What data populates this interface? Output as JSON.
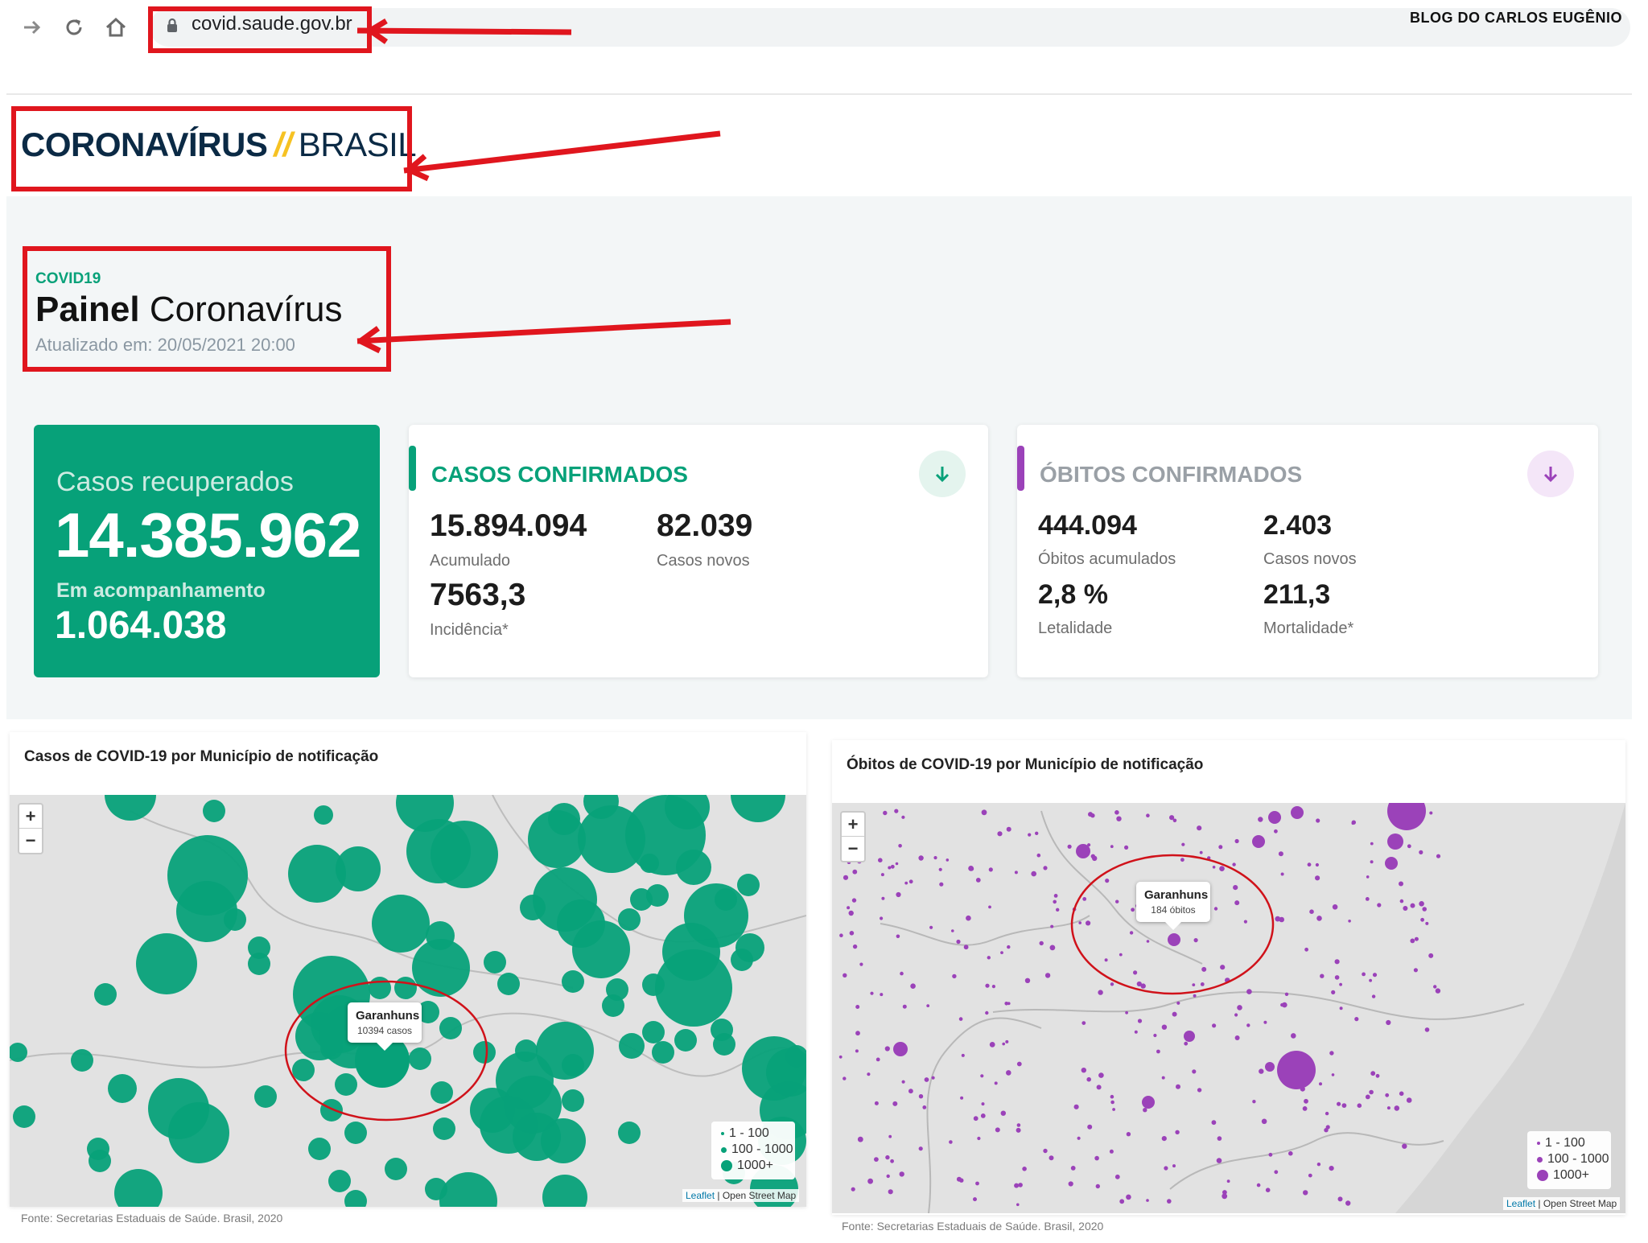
{
  "browser": {
    "url": "covid.saude.gov.br",
    "watermark": "BLOG DO CARLOS EUGÊNIO"
  },
  "header": {
    "brand_strong": "CORONAVÍRUS",
    "brand_slash": "//",
    "brand_light": "BRASIL"
  },
  "panel": {
    "tag": "COVID19",
    "title_strong": "Painel",
    "title_light": "Coronavírus",
    "updated": "Atualizado em:  20/05/2021 20:00"
  },
  "recovered": {
    "label": "Casos recuperados",
    "value": "14.385.962",
    "follow_label": "Em acompanhamento",
    "follow_value": "1.064.038"
  },
  "cases": {
    "title": "CASOS CONFIRMADOS",
    "accumulated": "15.894.094",
    "accumulated_label": "Acumulado",
    "new": "82.039",
    "new_label": "Casos novos",
    "incidence": "7563,3",
    "incidence_label": "Incidência*",
    "color": "#07a179"
  },
  "deaths": {
    "title": "ÓBITOS CONFIRMADOS",
    "accumulated": "444.094",
    "accumulated_label": "Óbitos acumulados",
    "new": "2.403",
    "new_label": "Casos novos",
    "lethality": "2,8 %",
    "lethality_label": "Letalidade",
    "mortality": "211,3",
    "mortality_label": "Mortalidade*",
    "color": "#9b42b9"
  },
  "map_cases": {
    "title": "Casos de COVID-19 por Município de notificação",
    "tooltip_name": "Garanhuns",
    "tooltip_value": "10394 casos",
    "legend": [
      "1 - 100",
      "100 - 1000",
      "1000+"
    ],
    "attribution_leaflet": "Leaflet",
    "attribution_osm": " | Open Street Map",
    "source": "Fonte: Secretarias Estaduais de Saúde. Brasil, 2020",
    "zoom_in": "+",
    "zoom_out": "−"
  },
  "map_deaths": {
    "title": "Óbitos de COVID-19 por Município de notificação",
    "tooltip_name": "Garanhuns",
    "tooltip_value": "184 óbitos",
    "legend": [
      "1 - 100",
      "100 - 1000",
      "1000+"
    ],
    "attribution_leaflet": "Leaflet",
    "attribution_osm": " | Open Street Map",
    "source": "Fonte: Secretarias Estaduais de Saúde. Brasil, 2020",
    "zoom_in": "+",
    "zoom_out": "−"
  },
  "icons": {
    "back": "arrow-right-icon",
    "reload": "reload-icon",
    "home": "home-icon",
    "lock": "lock-icon",
    "download": "arrow-down-icon"
  }
}
